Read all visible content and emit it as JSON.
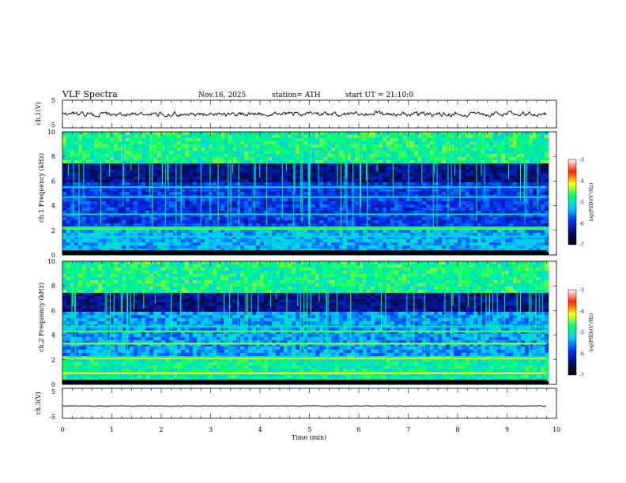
{
  "header": {
    "title": "VLF  Spectra",
    "date": "Nov.16, 2025",
    "station": "station= ATH",
    "start": "start  UT  =   21:10:0"
  },
  "chart_data": [
    {
      "type": "line",
      "id": "ch1_voltage",
      "ylabel": "ch.1(V)",
      "ylim": [
        -5,
        5
      ],
      "y_ticks": [
        "5",
        "-5"
      ],
      "xlim": [
        0,
        10
      ],
      "trace_center_v": 0.0,
      "trace_spread_v": 1.2,
      "trace_end_min": 9.8,
      "color": "#000000"
    },
    {
      "type": "heatmap",
      "id": "ch1_spectrogram",
      "ylabel": "ch.1 Frequency (kHz)",
      "ylim": [
        0,
        10
      ],
      "y_ticks": [
        "0",
        "2",
        "4",
        "6",
        "8",
        "10"
      ],
      "xlim": [
        0,
        10
      ],
      "data_end_min": 9.8,
      "notes": "log PSD; lines near 0.3, 1.5, 2.1, 2.2, 3.3, 4.7, 5.5 kHz; vertical spherics throughout"
    },
    {
      "type": "heatmap",
      "id": "ch2_spectrogram",
      "ylabel": "ch.2 Frequency (kHz)",
      "ylim": [
        0,
        10
      ],
      "y_ticks": [
        "0",
        "2",
        "4",
        "6",
        "8",
        "10"
      ],
      "xlim": [
        0,
        10
      ],
      "data_end_min": 9.8,
      "notes": "log PSD; strong lines near 0.9, 2.1, 3.3, 4.3 kHz; vertical spherics throughout"
    },
    {
      "type": "line",
      "id": "ch3_voltage",
      "ylabel": "ch.3(V)",
      "ylim": [
        -5,
        5
      ],
      "y_ticks": [
        "5",
        "-5"
      ],
      "xlim": [
        0,
        10
      ],
      "trace_center_v": -0.9,
      "trace_spread_v": 0.2,
      "trace_end_min": 9.8,
      "color": "#000000"
    }
  ],
  "xaxis": {
    "label": "Time  (min)",
    "ticks": [
      "0",
      "1",
      "2",
      "3",
      "4",
      "5",
      "6",
      "7",
      "8",
      "9",
      "10"
    ]
  },
  "colorbar": {
    "label": "log(PSD)(V²/Hz)",
    "ticks": [
      "-3",
      "-4",
      "-5",
      "-6",
      "-7"
    ],
    "range": [
      -7,
      -3
    ],
    "stops": [
      "#000000",
      "#001070",
      "#0030ff",
      "#00c8ff",
      "#00ff70",
      "#ffff00",
      "#ff2000",
      "#ffffff"
    ]
  }
}
